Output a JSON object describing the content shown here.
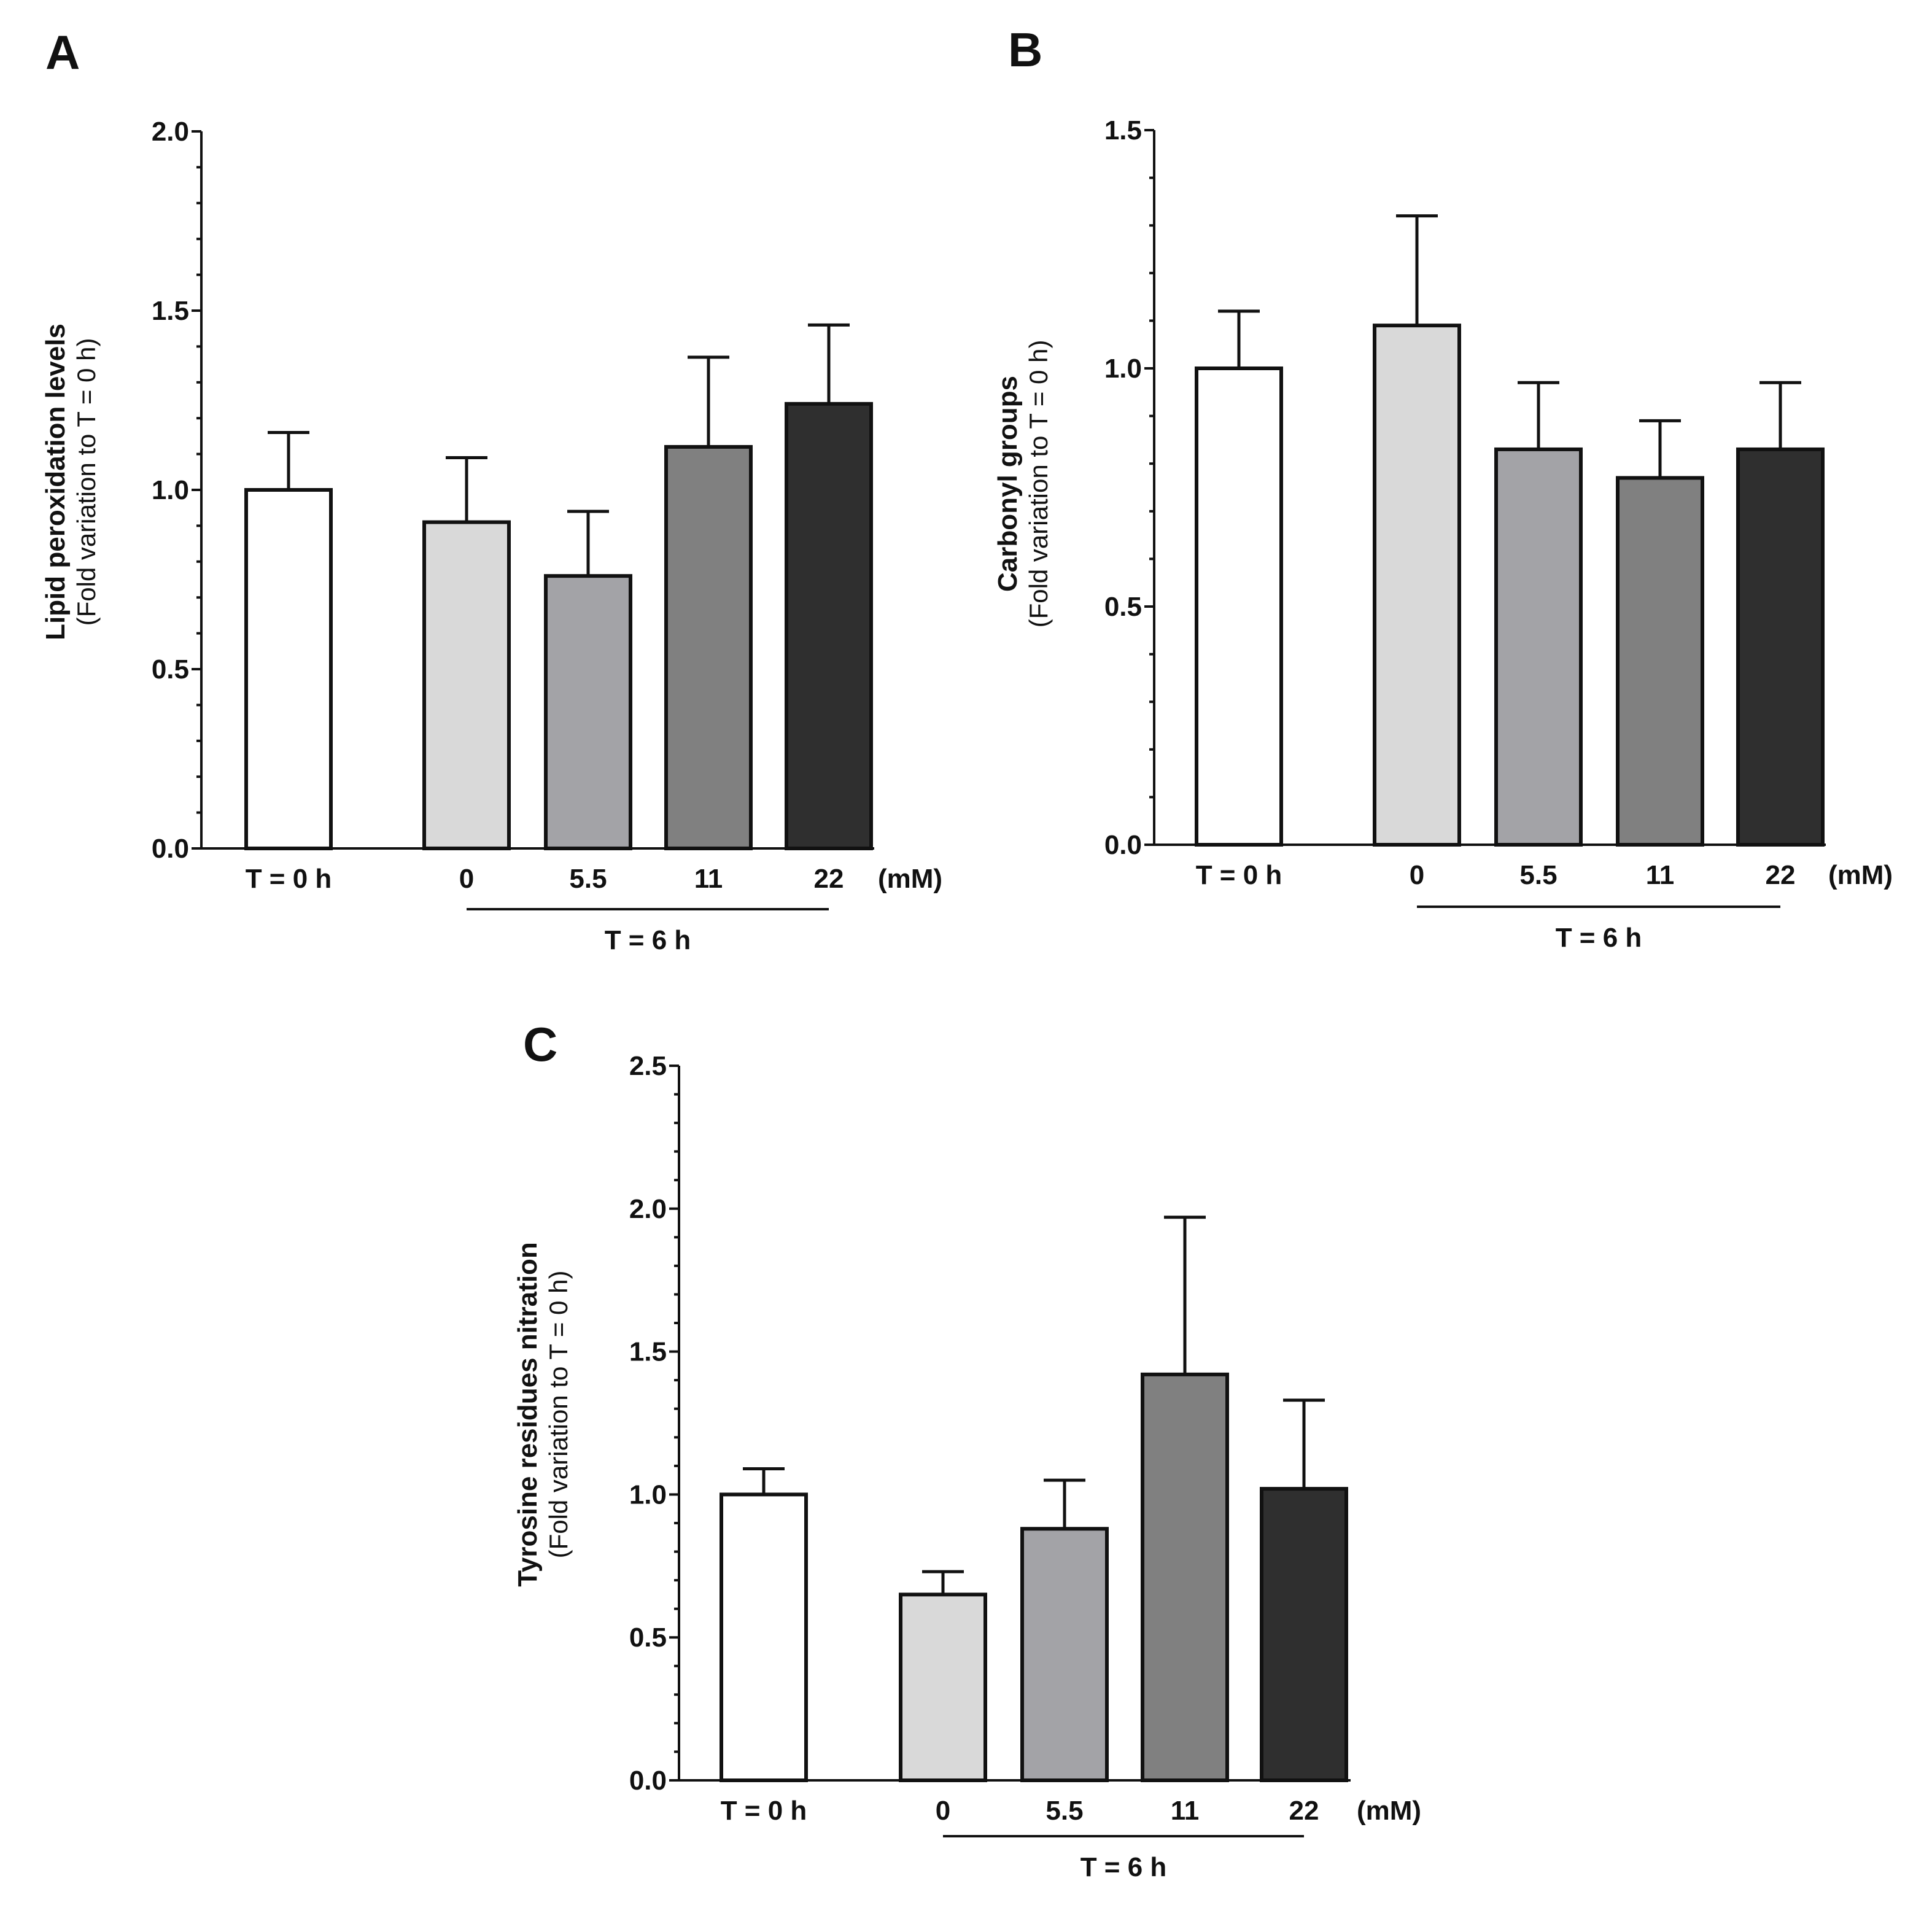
{
  "chart_data": [
    {
      "panel": "A",
      "type": "bar",
      "ylabel": "Lipid peroxidation levels",
      "ylabel_sub": "(Fold variation to T  = 0 h)",
      "ylim": [
        0,
        2.0
      ],
      "yticks": [
        "0.0",
        "0.5",
        "1.0",
        "1.5",
        "2.0"
      ],
      "categories": [
        "T = 0 h",
        "0",
        "5.5",
        "11",
        "22"
      ],
      "values": [
        1.0,
        0.91,
        0.76,
        1.12,
        1.24
      ],
      "errors": [
        0.16,
        0.18,
        0.18,
        0.25,
        0.22
      ],
      "colors": [
        "#ffffff",
        "#d9d9d9",
        "#a3a3a7",
        "#808080",
        "#2f2f2f"
      ],
      "unit": "(mM)",
      "group_label": "T = 6 h"
    },
    {
      "panel": "B",
      "type": "bar",
      "ylabel": "Carbonyl groups",
      "ylabel_sub": "(Fold variation to T  = 0 h)",
      "ylim": [
        0,
        1.5
      ],
      "yticks": [
        "0.0",
        "0.5",
        "1.0",
        "1.5"
      ],
      "categories": [
        "T = 0 h",
        "0",
        "5.5",
        "11",
        "22"
      ],
      "values": [
        1.0,
        1.09,
        0.83,
        0.77,
        0.83
      ],
      "errors": [
        0.12,
        0.23,
        0.14,
        0.12,
        0.14
      ],
      "colors": [
        "#ffffff",
        "#d9d9d9",
        "#a3a3a7",
        "#808080",
        "#2f2f2f"
      ],
      "unit": "(mM)",
      "group_label": "T = 6 h"
    },
    {
      "panel": "C",
      "type": "bar",
      "ylabel": "Tyrosine residues nitration",
      "ylabel_sub": "(Fold variation to T  = 0 h)",
      "ylim": [
        0,
        2.5
      ],
      "yticks": [
        "0.0",
        "0.5",
        "1.0",
        "1.5",
        "2.0",
        "2.5"
      ],
      "categories": [
        "T = 0 h",
        "0",
        "5.5",
        "11",
        "22"
      ],
      "values": [
        1.0,
        0.65,
        0.88,
        1.42,
        1.02
      ],
      "errors": [
        0.09,
        0.08,
        0.17,
        0.55,
        0.31
      ],
      "colors": [
        "#ffffff",
        "#d9d9d9",
        "#a3a3a7",
        "#808080",
        "#2f2f2f"
      ],
      "unit": "(mM)",
      "group_label": "T = 6 h"
    }
  ]
}
